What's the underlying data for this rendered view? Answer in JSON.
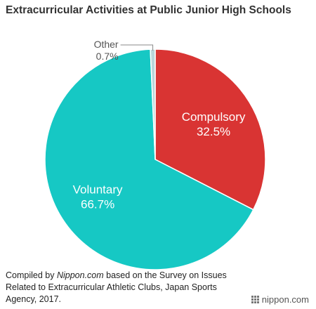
{
  "chart_data": {
    "type": "pie",
    "title": "Extracurricular Activities at Public Junior High Schools",
    "slices": [
      {
        "label": "Compulsory",
        "value": 32.5,
        "value_label": "32.5%",
        "color": "#d93433"
      },
      {
        "label": "Voluntary",
        "value": 66.7,
        "value_label": "66.7%",
        "color": "#16c8c4"
      },
      {
        "label": "Other",
        "value": 0.7,
        "value_label": "0.7%",
        "color": "#b9d5da"
      }
    ],
    "start": "12 o'clock",
    "direction": "clockwise"
  },
  "source": {
    "prefix": "Compiled by ",
    "publisher": "Nippon.com",
    "suffix": " based on the Survey on Issues Related to Extracurricular Athletic Clubs, Japan Sports Agency, 2017."
  },
  "brand": {
    "name": "nippon.com"
  }
}
